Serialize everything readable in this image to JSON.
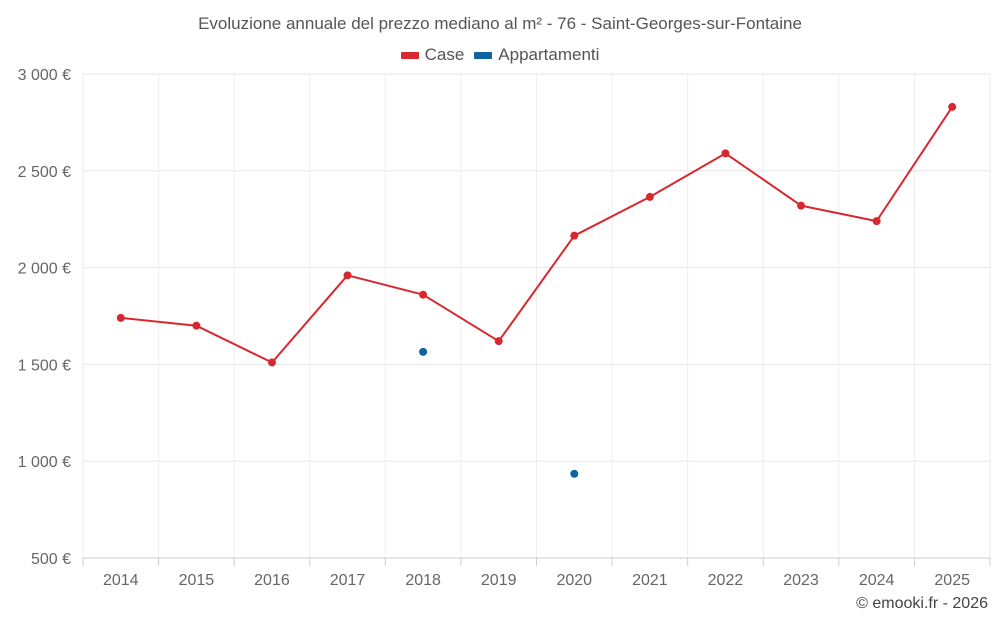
{
  "chart_data": {
    "type": "line",
    "title": "Evoluzione annuale del prezzo mediano al m² - 76 - Saint-Georges-sur-Fontaine",
    "xlabel": "",
    "ylabel": "",
    "categories": [
      "2014",
      "2015",
      "2016",
      "2017",
      "2018",
      "2019",
      "2020",
      "2021",
      "2022",
      "2023",
      "2024",
      "2025"
    ],
    "ylim": [
      500,
      3000
    ],
    "yticks": [
      500,
      1000,
      1500,
      2000,
      2500,
      3000
    ],
    "ytick_labels": [
      "500 €",
      "1 000 €",
      "1 500 €",
      "2 000 €",
      "2 500 €",
      "3 000 €"
    ],
    "grid": true,
    "legend_position": "top-center",
    "series": [
      {
        "name": "Case",
        "color": "#d7282f",
        "style": "line",
        "values": [
          1740,
          1700,
          1510,
          1960,
          1860,
          1620,
          2165,
          2365,
          2590,
          2320,
          2240,
          2830
        ]
      },
      {
        "name": "Appartamenti",
        "color": "#0e64a0",
        "style": "points",
        "values": [
          null,
          null,
          null,
          null,
          1565,
          null,
          935,
          null,
          null,
          null,
          null,
          null
        ]
      }
    ]
  },
  "credit": "© emooki.fr - 2026"
}
